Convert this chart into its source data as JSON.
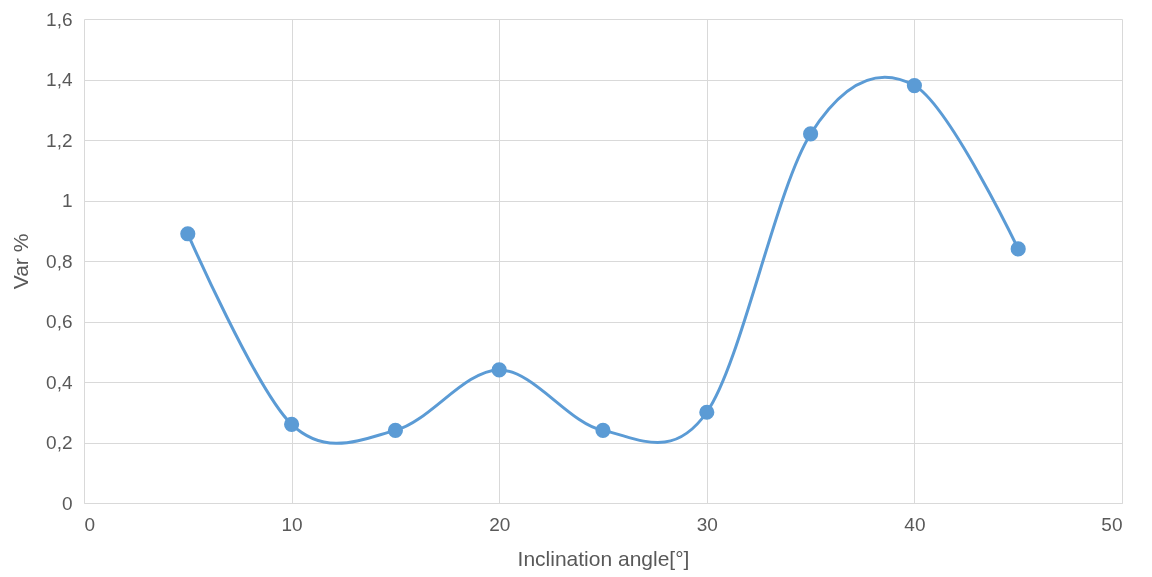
{
  "chart_data": {
    "type": "line",
    "xlabel": "Inclination angle[°]",
    "ylabel": "Var %",
    "x": [
      5,
      10,
      15,
      20,
      25,
      30,
      35,
      40,
      45
    ],
    "series": [
      {
        "color": "#5b9bd5",
        "values": [
          0.89,
          0.26,
          0.24,
          0.44,
          0.24,
          0.3,
          1.22,
          1.38,
          0.84
        ]
      }
    ],
    "xlim": [
      0,
      50
    ],
    "xticks": [
      0,
      10,
      20,
      30,
      40,
      50
    ],
    "ylim": [
      0,
      1.6
    ],
    "yticks": [
      0,
      {
        "value": 0.2,
        "label": "0,2"
      },
      {
        "value": 0.4,
        "label": "0,4"
      },
      {
        "value": 0.6,
        "label": "0,6"
      },
      {
        "value": 0.8,
        "label": "0,8"
      },
      1,
      {
        "value": 1.2,
        "label": "1,2"
      },
      {
        "value": 1.4,
        "label": "1,4"
      },
      {
        "value": 1.6,
        "label": "1,6"
      }
    ],
    "grid": true,
    "legend": false,
    "marker": "circle",
    "line_style": "solid"
  }
}
